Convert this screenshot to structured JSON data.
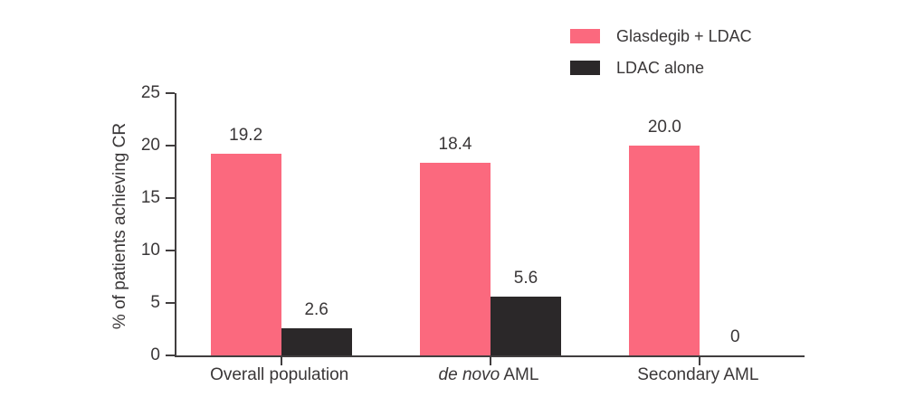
{
  "figure": {
    "background": "#ffffff"
  },
  "colors": {
    "axis": "#413e3f",
    "text": "#3a3738",
    "series_pink": "#fb697e",
    "series_dark": "#2b2829"
  },
  "chart_data": {
    "type": "bar",
    "title": "",
    "xlabel": "",
    "ylabel": "% of patients achieving CR",
    "ylim": [
      0,
      25
    ],
    "yticks": [
      0,
      5,
      10,
      15,
      20,
      25
    ],
    "grid": false,
    "legend_position": "top-right",
    "categories": [
      "Overall population",
      "de novo AML",
      "Secondary AML"
    ],
    "categories_rich": [
      [
        {
          "text": "Overall population",
          "italic": false
        }
      ],
      [
        {
          "text": "de novo",
          "italic": true
        },
        {
          "text": " AML",
          "italic": false
        }
      ],
      [
        {
          "text": "Secondary AML",
          "italic": false
        }
      ]
    ],
    "series": [
      {
        "name": "Glasdegib + LDAC",
        "color": "#fb697e",
        "values": [
          19.2,
          18.4,
          20.0
        ],
        "labels": [
          "19.2",
          "18.4",
          "20.0"
        ]
      },
      {
        "name": "LDAC alone",
        "color": "#2b2829",
        "values": [
          2.6,
          5.6,
          0
        ],
        "labels": [
          "2.6",
          "5.6",
          "0"
        ]
      }
    ]
  }
}
